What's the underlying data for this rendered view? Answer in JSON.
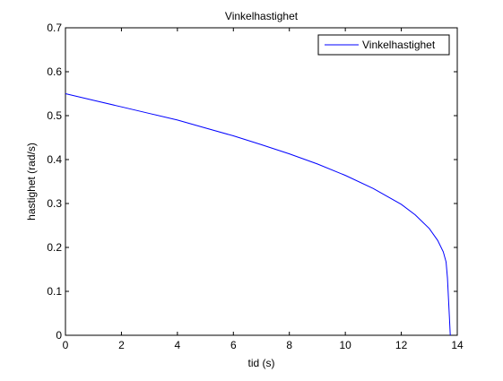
{
  "chart_data": {
    "type": "line",
    "title": "Vinkelhastighet",
    "xlabel": "tid (s)",
    "ylabel": "hastighet (rad/s)",
    "xlim": [
      0,
      14
    ],
    "ylim": [
      0,
      0.7
    ],
    "xticks": [
      0,
      2,
      4,
      6,
      8,
      10,
      12,
      14
    ],
    "yticks": [
      0,
      0.1,
      0.2,
      0.3,
      0.4,
      0.5,
      0.6,
      0.7
    ],
    "grid": false,
    "legend_position": "top-right",
    "series": [
      {
        "name": "Vinkelhastighet",
        "color": "#0000ff",
        "x": [
          0,
          1,
          2,
          3,
          4,
          5,
          6,
          7,
          8,
          9,
          10,
          11,
          12,
          12.5,
          13,
          13.3,
          13.5,
          13.6,
          13.65,
          13.72,
          13.75
        ],
        "y": [
          0.55,
          0.535,
          0.52,
          0.505,
          0.49,
          0.472,
          0.454,
          0.434,
          0.413,
          0.39,
          0.364,
          0.334,
          0.298,
          0.274,
          0.243,
          0.216,
          0.19,
          0.167,
          0.13,
          0.04,
          0
        ]
      }
    ]
  }
}
